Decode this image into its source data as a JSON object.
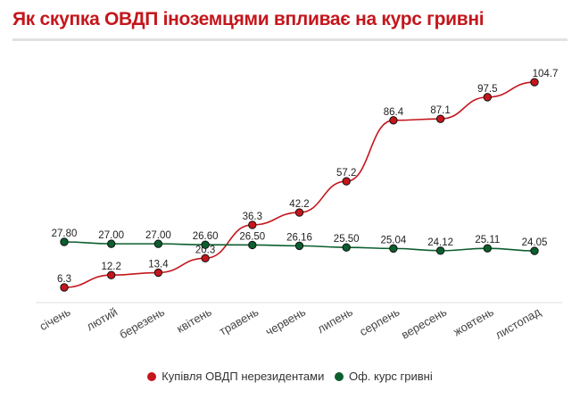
{
  "chart_data": {
    "type": "line",
    "title": "Як скупка ОВДП іноземцями впливає на курс гривні",
    "categories": [
      "січень",
      "лютий",
      "березень",
      "квітень",
      "травень",
      "червень",
      "липень",
      "серпень",
      "вересень",
      "жовтень",
      "листопад"
    ],
    "series": [
      {
        "name": "Купівля ОВДП нерезидентами",
        "color": "#c4161c",
        "labels": [
          "6.3",
          "12.2",
          "13.4",
          "20.3",
          "36.3",
          "42.2",
          "57.2",
          "86.4",
          "87.1",
          "97.5",
          "104.7"
        ],
        "values": [
          6.3,
          12.2,
          13.4,
          20.3,
          36.3,
          42.2,
          57.2,
          86.4,
          87.1,
          97.5,
          104.7
        ]
      },
      {
        "name": "Оф. курс гривні",
        "color": "#0b5e2e",
        "labels": [
          "27.80",
          "27.00",
          "27.00",
          "26.60",
          "26.50",
          "26.16",
          "25.50",
          "25.04",
          "24.12",
          "25.11",
          "24.05"
        ],
        "values": [
          27.8,
          27.0,
          27.0,
          26.6,
          26.5,
          26.16,
          25.5,
          25.04,
          24.12,
          25.11,
          24.05
        ]
      }
    ],
    "legend": "bottom",
    "grid": false
  }
}
